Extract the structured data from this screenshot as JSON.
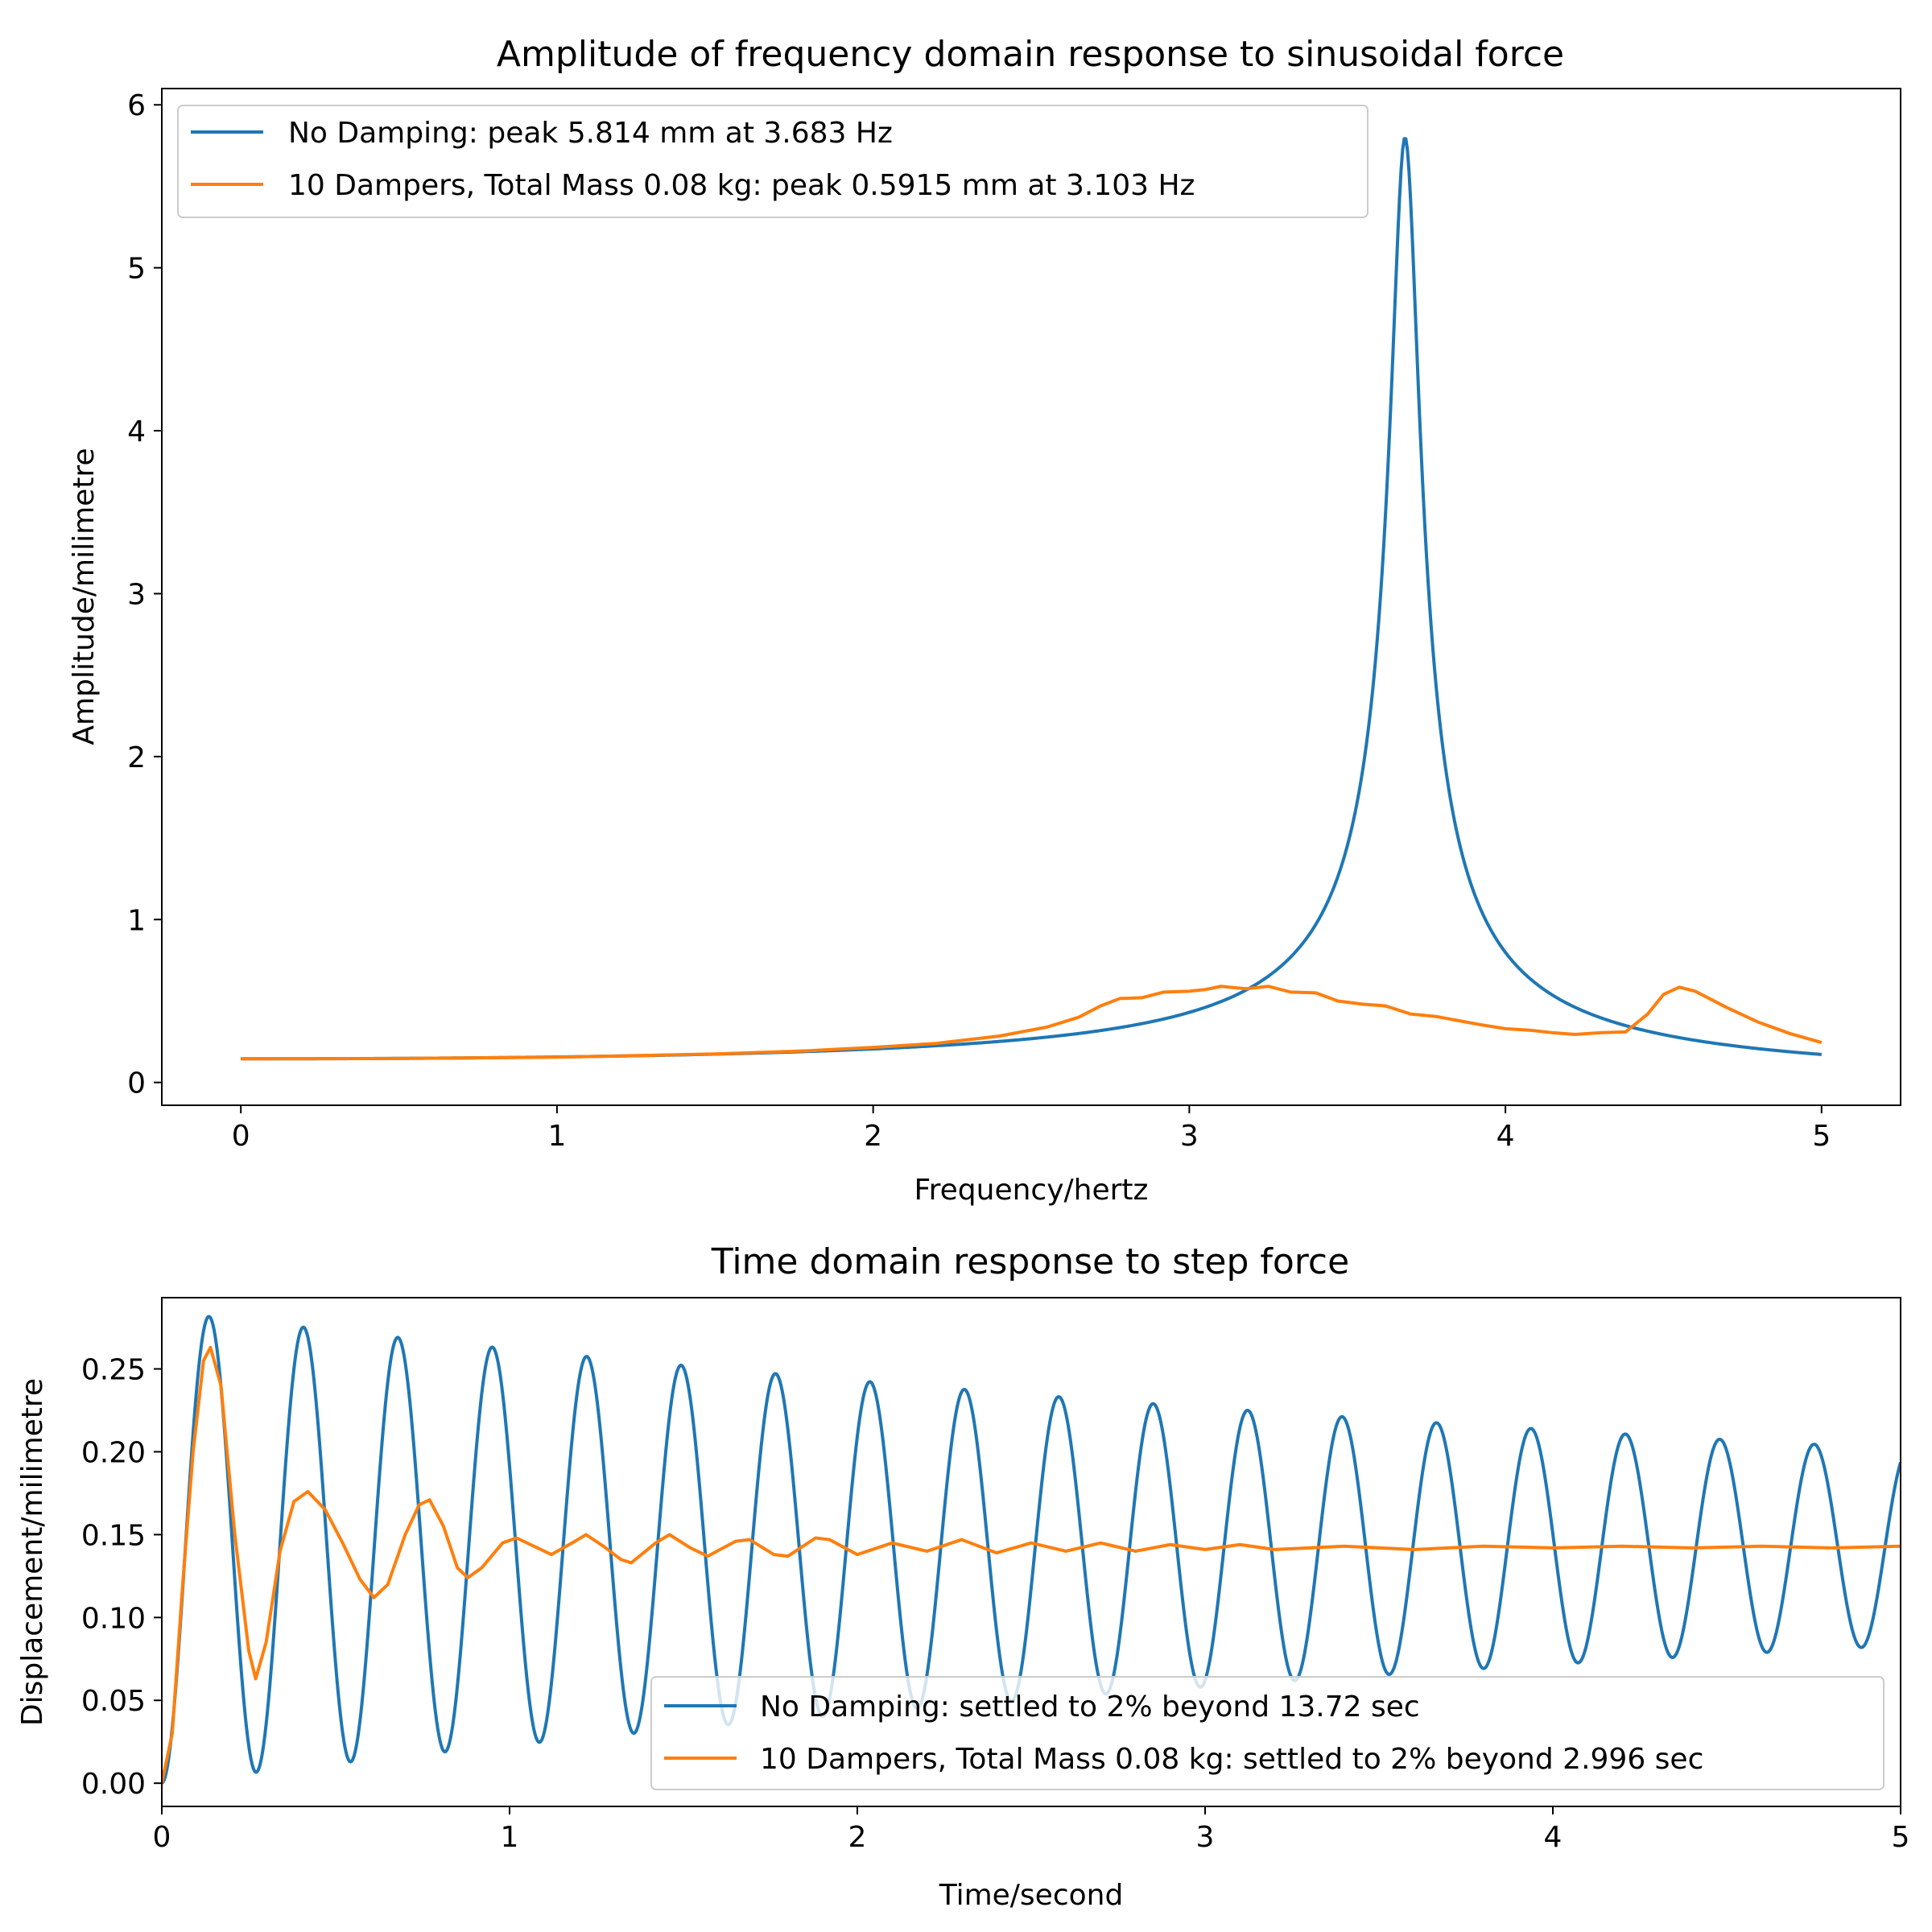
{
  "chart_data": [
    {
      "type": "line",
      "title": "Amplitude of frequency domain response to sinusoidal force",
      "xlabel": "Frequency/hertz",
      "ylabel": "Amplitude/milimetre",
      "xlim": [
        -0.25,
        5.25
      ],
      "ylim": [
        -0.14,
        6.1
      ],
      "xticks": [
        0,
        1,
        2,
        3,
        4,
        5
      ],
      "yticks": [
        0,
        1,
        2,
        3,
        4,
        5,
        6
      ],
      "grid": false,
      "legend_loc": "upper left",
      "series": [
        {
          "name": "No Damping:  peak 5.814 mm at 3.683 Hz",
          "color": "#1f77b4",
          "model": {
            "kind": "sdof",
            "fn": 3.683,
            "peak": 5.814,
            "static": 0.145,
            "zeta": 0.0125
          }
        },
        {
          "name": "10 Dampers, Total Mass 0.08 kg:  peak 0.5915 mm at 3.103 Hz",
          "color": "#ff7f0e",
          "points": [
            [
              0,
              0.145
            ],
            [
              0.5,
              0.147
            ],
            [
              1,
              0.155
            ],
            [
              1.5,
              0.175
            ],
            [
              1.8,
              0.195
            ],
            [
              2.0,
              0.215
            ],
            [
              2.2,
              0.24
            ],
            [
              2.4,
              0.285
            ],
            [
              2.55,
              0.34
            ],
            [
              2.65,
              0.4
            ],
            [
              2.72,
              0.47
            ],
            [
              2.78,
              0.515
            ],
            [
              2.85,
              0.52
            ],
            [
              2.92,
              0.555
            ],
            [
              3.0,
              0.56
            ],
            [
              3.05,
              0.57
            ],
            [
              3.1,
              0.59
            ],
            [
              3.18,
              0.575
            ],
            [
              3.25,
              0.59
            ],
            [
              3.32,
              0.555
            ],
            [
              3.4,
              0.55
            ],
            [
              3.47,
              0.5
            ],
            [
              3.55,
              0.48
            ],
            [
              3.62,
              0.47
            ],
            [
              3.7,
              0.42
            ],
            [
              3.78,
              0.405
            ],
            [
              3.85,
              0.38
            ],
            [
              3.92,
              0.355
            ],
            [
              4.0,
              0.33
            ],
            [
              4.08,
              0.32
            ],
            [
              4.15,
              0.305
            ],
            [
              4.22,
              0.295
            ],
            [
              4.3,
              0.305
            ],
            [
              4.38,
              0.31
            ],
            [
              4.45,
              0.42
            ],
            [
              4.5,
              0.54
            ],
            [
              4.55,
              0.585
            ],
            [
              4.6,
              0.56
            ],
            [
              4.7,
              0.46
            ],
            [
              4.8,
              0.37
            ],
            [
              4.9,
              0.3
            ],
            [
              5.0,
              0.245
            ]
          ]
        }
      ]
    },
    {
      "type": "line",
      "title": "Time domain response to step force",
      "xlabel": "Time/second",
      "ylabel": "Displacement/milimetre",
      "xlim": [
        0,
        5
      ],
      "ylim": [
        -0.014,
        0.293
      ],
      "xticks": [
        0,
        1,
        2,
        3,
        4,
        5
      ],
      "yticks": [
        0.0,
        0.05,
        0.1,
        0.15,
        0.2,
        0.25
      ],
      "ytick_labels": [
        "0.00",
        "0.05",
        "0.10",
        "0.15",
        "0.20",
        "0.25"
      ],
      "grid": false,
      "legend_loc": "lower right",
      "series": [
        {
          "name": "No Damping:  settled to 2% beyond 13.72 sec",
          "color": "#1f77b4",
          "model": {
            "kind": "step",
            "final": 0.1425,
            "freq": 3.683,
            "decay": 0.175,
            "amp": 0.1425
          }
        },
        {
          "name": "10 Dampers, Total Mass 0.08 kg:  settled to 2% beyond 2.996 sec",
          "color": "#ff7f0e",
          "points": [
            [
              0,
              0.0
            ],
            [
              0.03,
              0.03
            ],
            [
              0.06,
              0.12
            ],
            [
              0.09,
              0.2
            ],
            [
              0.12,
              0.255
            ],
            [
              0.14,
              0.263
            ],
            [
              0.17,
              0.24
            ],
            [
              0.21,
              0.15
            ],
            [
              0.25,
              0.08
            ],
            [
              0.27,
              0.063
            ],
            [
              0.3,
              0.085
            ],
            [
              0.34,
              0.14
            ],
            [
              0.38,
              0.17
            ],
            [
              0.42,
              0.176
            ],
            [
              0.47,
              0.165
            ],
            [
              0.52,
              0.145
            ],
            [
              0.57,
              0.123
            ],
            [
              0.61,
              0.112
            ],
            [
              0.65,
              0.12
            ],
            [
              0.7,
              0.15
            ],
            [
              0.74,
              0.168
            ],
            [
              0.77,
              0.171
            ],
            [
              0.81,
              0.155
            ],
            [
              0.85,
              0.13
            ],
            [
              0.88,
              0.124
            ],
            [
              0.92,
              0.13
            ],
            [
              0.98,
              0.145
            ],
            [
              1.02,
              0.148
            ],
            [
              1.08,
              0.142
            ],
            [
              1.12,
              0.138
            ],
            [
              1.18,
              0.145
            ],
            [
              1.22,
              0.15
            ],
            [
              1.27,
              0.143
            ],
            [
              1.32,
              0.135
            ],
            [
              1.35,
              0.133
            ],
            [
              1.42,
              0.145
            ],
            [
              1.46,
              0.15
            ],
            [
              1.52,
              0.142
            ],
            [
              1.57,
              0.137
            ],
            [
              1.65,
              0.146
            ],
            [
              1.69,
              0.147
            ],
            [
              1.76,
              0.138
            ],
            [
              1.8,
              0.137
            ],
            [
              1.88,
              0.148
            ],
            [
              1.92,
              0.147
            ],
            [
              2.0,
              0.138
            ],
            [
              2.1,
              0.145
            ],
            [
              2.2,
              0.14
            ],
            [
              2.3,
              0.147
            ],
            [
              2.4,
              0.139
            ],
            [
              2.5,
              0.145
            ],
            [
              2.6,
              0.14
            ],
            [
              2.7,
              0.145
            ],
            [
              2.8,
              0.14
            ],
            [
              2.9,
              0.144
            ],
            [
              3.0,
              0.141
            ],
            [
              3.1,
              0.144
            ],
            [
              3.2,
              0.141
            ],
            [
              3.4,
              0.143
            ],
            [
              3.6,
              0.141
            ],
            [
              3.8,
              0.143
            ],
            [
              4.0,
              0.142
            ],
            [
              4.2,
              0.143
            ],
            [
              4.4,
              0.142
            ],
            [
              4.6,
              0.143
            ],
            [
              4.8,
              0.142
            ],
            [
              5.0,
              0.143
            ]
          ]
        }
      ]
    }
  ]
}
